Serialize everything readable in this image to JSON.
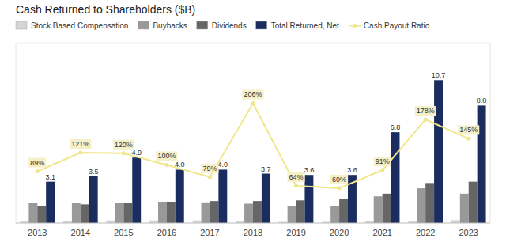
{
  "chart_data": {
    "type": "bar",
    "title": "Cash Returned to Shareholders ($B)",
    "categories": [
      "2013",
      "2014",
      "2015",
      "2016",
      "2017",
      "2018",
      "2019",
      "2020",
      "2021",
      "2022",
      "2023"
    ],
    "series": [
      {
        "name": "Stock Based Compensation",
        "color": "#d4d4d4",
        "values": [
          0.18,
          0.18,
          0.2,
          0.2,
          0.2,
          0.18,
          0.15,
          0.15,
          0.18,
          0.18,
          0.22
        ]
      },
      {
        "name": "Buybacks",
        "color": "#999999",
        "values": [
          1.5,
          1.5,
          1.5,
          1.6,
          1.55,
          1.45,
          1.3,
          1.3,
          2.0,
          2.6,
          2.2
        ]
      },
      {
        "name": "Dividends",
        "color": "#666666",
        "values": [
          1.3,
          1.4,
          1.5,
          1.6,
          1.65,
          1.65,
          1.7,
          1.8,
          2.2,
          3.0,
          3.1
        ]
      },
      {
        "name": "Total Returned, Net",
        "color": "#1b2d5e",
        "values": [
          3.1,
          3.5,
          4.9,
          4.0,
          4.0,
          3.7,
          3.6,
          3.6,
          6.8,
          10.7,
          8.8
        ],
        "data_labels": true,
        "value_labels": [
          "3.1",
          "3.5",
          "4.9",
          "4.0",
          "4.0",
          "3.7",
          "3.6",
          "3.6",
          "6.8",
          "10.7",
          "8.8"
        ]
      },
      {
        "name": "Cash Payout Ratio",
        "type": "line",
        "axis": "y2",
        "color": "#f0e68c",
        "marker": "circle",
        "values": [
          89,
          121,
          120,
          100,
          79,
          206,
          64,
          60,
          91,
          178,
          145
        ],
        "data_labels": true,
        "value_labels": [
          "89%",
          "121%",
          "120%",
          "100%",
          "79%",
          "206%",
          "64%",
          "60%",
          "91%",
          "178%",
          "145%"
        ]
      }
    ],
    "ylim": [
      0,
      13.5
    ],
    "y2lim": [
      0,
      310
    ],
    "tick_labels": "x",
    "grid": false,
    "legend": "top-left"
  }
}
